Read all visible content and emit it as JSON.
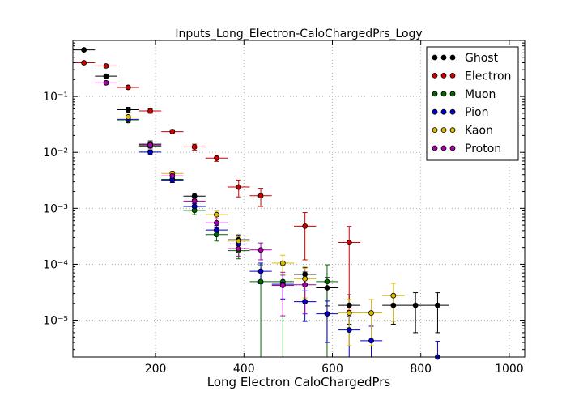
{
  "chart_data": {
    "type": "scatter",
    "title": "Inputs_Long_Electron-CaloChargedPrs_Logy",
    "xlabel": "Long Electron CaloChargedPrs",
    "ylabel": "",
    "xlim": [
      13,
      1035
    ],
    "ylim": [
      2.2e-06,
      1
    ],
    "yscale": "log",
    "grid": true,
    "legend_position": "top-right",
    "x_ticks": [
      200,
      400,
      600,
      800,
      1000
    ],
    "y_ticks": [
      {
        "value": 1e-05,
        "label": "10⁻⁵"
      },
      {
        "value": 0.0001,
        "label": "10⁻⁴"
      },
      {
        "value": 0.001,
        "label": "10⁻³"
      },
      {
        "value": 0.01,
        "label": "10⁻²"
      },
      {
        "value": 0.1,
        "label": "10⁻¹"
      }
    ],
    "bin_half_width": 25,
    "series": [
      {
        "name": "Ghost",
        "color": "#000000",
        "points": [
          {
            "x": 38,
            "y": 0.68,
            "err": 0.03
          },
          {
            "x": 88,
            "y": 0.23,
            "err": 0.02
          },
          {
            "x": 138,
            "y": 0.058,
            "err": 0.006
          },
          {
            "x": 188,
            "y": 0.014,
            "err": 0.002
          },
          {
            "x": 288,
            "y": 0.00165,
            "err": 0.0002
          },
          {
            "x": 388,
            "y": 0.000275,
            "err": 6e-05
          },
          {
            "x": 538,
            "y": 6.6e-05,
            "err": 2.2e-05
          },
          {
            "x": 588,
            "y": 3.8e-05,
            "err": 2e-05
          },
          {
            "x": 638,
            "y": 1.85e-05,
            "err": 1e-05
          },
          {
            "x": 738,
            "y": 1.85e-05,
            "err": 1e-05
          },
          {
            "x": 788,
            "y": 1.85e-05,
            "err": 1.25e-05
          },
          {
            "x": 838,
            "y": 1.85e-05,
            "err": 1.25e-05
          }
        ]
      },
      {
        "name": "Electron",
        "color": "#cc0000",
        "points": [
          {
            "x": 38,
            "y": 0.4,
            "err": 0.02
          },
          {
            "x": 88,
            "y": 0.35,
            "err": 0.02
          },
          {
            "x": 138,
            "y": 0.145,
            "err": 0.01
          },
          {
            "x": 188,
            "y": 0.055,
            "err": 0.005
          },
          {
            "x": 238,
            "y": 0.0235,
            "err": 0.002
          },
          {
            "x": 288,
            "y": 0.0125,
            "err": 0.0015
          },
          {
            "x": 338,
            "y": 0.0079,
            "err": 0.001
          },
          {
            "x": 388,
            "y": 0.0024,
            "err": 0.0008
          },
          {
            "x": 438,
            "y": 0.00168,
            "err": 0.0006
          },
          {
            "x": 538,
            "y": 0.00048,
            "err": 0.00036
          },
          {
            "x": 638,
            "y": 0.000245,
            "err": 0.00023
          }
        ]
      },
      {
        "name": "Muon",
        "color": "#006600",
        "points": [
          {
            "x": 138,
            "y": 0.037,
            "err": 0.003
          },
          {
            "x": 188,
            "y": 0.013,
            "err": 0.001
          },
          {
            "x": 238,
            "y": 0.0033,
            "err": 0.0004
          },
          {
            "x": 288,
            "y": 0.00092,
            "err": 0.00015
          },
          {
            "x": 338,
            "y": 0.00034,
            "err": 8e-05
          },
          {
            "x": 388,
            "y": 0.000175,
            "err": 5e-05
          },
          {
            "x": 438,
            "y": 4.9e-05,
            "err": 4.9e-05
          },
          {
            "x": 488,
            "y": 4.9e-05,
            "err": 4.9e-05
          },
          {
            "x": 588,
            "y": 4.9e-05,
            "err": 4.9e-05
          }
        ]
      },
      {
        "name": "Pion",
        "color": "#0000cc",
        "points": [
          {
            "x": 138,
            "y": 0.039,
            "err": 0.003
          },
          {
            "x": 188,
            "y": 0.0101,
            "err": 0.001
          },
          {
            "x": 238,
            "y": 0.0032,
            "err": 0.0003
          },
          {
            "x": 288,
            "y": 0.00108,
            "err": 0.00013
          },
          {
            "x": 338,
            "y": 0.00041,
            "err": 8e-05
          },
          {
            "x": 388,
            "y": 0.00023,
            "err": 5e-05
          },
          {
            "x": 438,
            "y": 7.5e-05,
            "err": 3e-05
          },
          {
            "x": 488,
            "y": 4.4e-05,
            "err": 2e-05
          },
          {
            "x": 538,
            "y": 2.15e-05,
            "err": 1.2e-05
          },
          {
            "x": 588,
            "y": 1.3e-05,
            "err": 9e-06
          },
          {
            "x": 638,
            "y": 6.7e-06,
            "err": 5e-06
          },
          {
            "x": 688,
            "y": 4.3e-06,
            "err": 3.5e-06
          },
          {
            "x": 838,
            "y": 2.2e-06,
            "err": 2e-06
          }
        ]
      },
      {
        "name": "Kaon",
        "color": "#ddbb00",
        "points": [
          {
            "x": 138,
            "y": 0.043,
            "err": 0.003
          },
          {
            "x": 238,
            "y": 0.0042,
            "err": 0.0004
          },
          {
            "x": 338,
            "y": 0.00077,
            "err": 0.00012
          },
          {
            "x": 388,
            "y": 0.00026,
            "err": 5e-05
          },
          {
            "x": 488,
            "y": 0.000105,
            "err": 4e-05
          },
          {
            "x": 538,
            "y": 5.5e-05,
            "err": 3e-05
          },
          {
            "x": 638,
            "y": 1.35e-05,
            "err": 1e-05
          },
          {
            "x": 688,
            "y": 1.35e-05,
            "err": 1e-05
          },
          {
            "x": 738,
            "y": 2.75e-05,
            "err": 1.8e-05
          }
        ]
      },
      {
        "name": "Proton",
        "color": "#aa00aa",
        "points": [
          {
            "x": 88,
            "y": 0.175,
            "err": 0.012
          },
          {
            "x": 188,
            "y": 0.0135,
            "err": 0.0015
          },
          {
            "x": 238,
            "y": 0.0038,
            "err": 0.0004
          },
          {
            "x": 288,
            "y": 0.00135,
            "err": 0.0002
          },
          {
            "x": 338,
            "y": 0.00055,
            "err": 0.0001
          },
          {
            "x": 388,
            "y": 0.00019,
            "err": 5e-05
          },
          {
            "x": 438,
            "y": 0.00018,
            "err": 6e-05
          },
          {
            "x": 488,
            "y": 4.2e-05,
            "err": 3e-05
          },
          {
            "x": 538,
            "y": 4.3e-05,
            "err": 3e-05
          }
        ]
      }
    ]
  }
}
